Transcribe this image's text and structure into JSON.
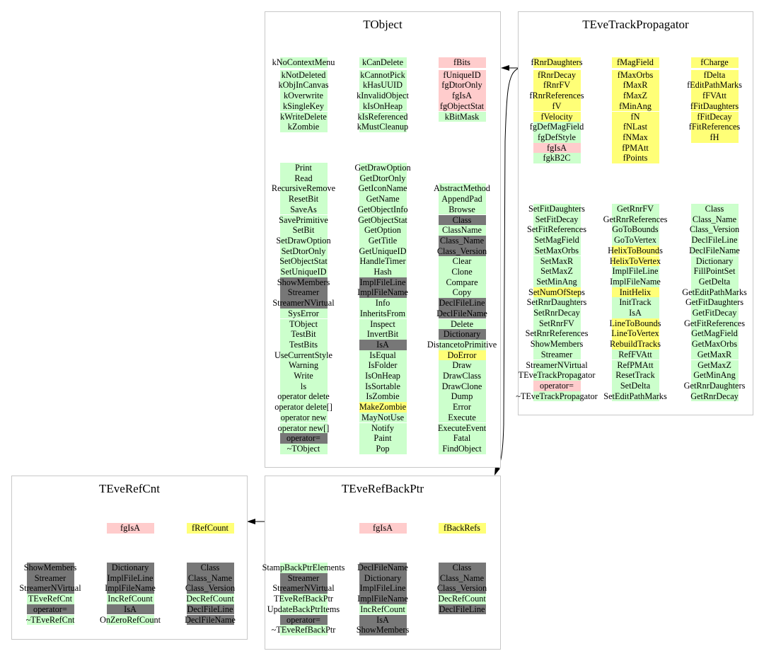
{
  "colors": {
    "g": "#ccffcc",
    "p": "#ffcccc",
    "y": "#ffff77",
    "d": "#777777"
  },
  "classes": [
    {
      "title": "TObject",
      "members": [
        [
          [
            "kNoContextMenu",
            "g"
          ],
          [
            "kNotDeleted",
            "g"
          ],
          [
            "kObjInCanvas",
            "g"
          ],
          [
            "kOverwrite",
            "g"
          ],
          [
            "kSingleKey",
            "g"
          ],
          [
            "kWriteDelete",
            "g"
          ],
          [
            "kZombie",
            "g"
          ]
        ],
        [
          [
            "kCanDelete",
            "g"
          ],
          [
            "kCannotPick",
            "g"
          ],
          [
            "kHasUUID",
            "g"
          ],
          [
            "kInvalidObject",
            "g"
          ],
          [
            "kIsOnHeap",
            "g"
          ],
          [
            "kIsReferenced",
            "g"
          ],
          [
            "kMustCleanup",
            "g"
          ]
        ],
        [
          [
            "fBits",
            "p"
          ],
          [
            "fUniqueID",
            "p"
          ],
          [
            "fgDtorOnly",
            "p"
          ],
          [
            "fgIsA",
            "p"
          ],
          [
            "fgObjectStat",
            "p"
          ],
          [
            "kBitMask",
            "g"
          ]
        ]
      ],
      "methods": [
        [
          [
            "Print",
            "g"
          ],
          [
            "Read",
            "g"
          ],
          [
            "RecursiveRemove",
            "g"
          ],
          [
            "ResetBit",
            "g"
          ],
          [
            "SaveAs",
            "g"
          ],
          [
            "SavePrimitive",
            "g"
          ],
          [
            "SetBit",
            "g"
          ],
          [
            "SetDrawOption",
            "g"
          ],
          [
            "SetDtorOnly",
            "g"
          ],
          [
            "SetObjectStat",
            "g"
          ],
          [
            "SetUniqueID",
            "g"
          ],
          [
            "ShowMembers",
            "d"
          ],
          [
            "Streamer",
            "d"
          ],
          [
            "StreamerNVirtual",
            "d"
          ],
          [
            "SysError",
            "g"
          ],
          [
            "TObject",
            "g"
          ],
          [
            "TestBit",
            "g"
          ],
          [
            "TestBits",
            "g"
          ],
          [
            "UseCurrentStyle",
            "g"
          ],
          [
            "Warning",
            "g"
          ],
          [
            "Write",
            "g"
          ],
          [
            "ls",
            "g"
          ],
          [
            "operator delete",
            "g"
          ],
          [
            "operator delete[]",
            "g"
          ],
          [
            "operator new",
            "g"
          ],
          [
            "operator new[]",
            "g"
          ],
          [
            "operator=",
            "d"
          ],
          [
            "~TObject",
            "g"
          ]
        ],
        [
          [
            "GetDrawOption",
            "g"
          ],
          [
            "GetDtorOnly",
            "g"
          ],
          [
            "GetIconName",
            "g"
          ],
          [
            "GetName",
            "g"
          ],
          [
            "GetObjectInfo",
            "g"
          ],
          [
            "GetObjectStat",
            "g"
          ],
          [
            "GetOption",
            "g"
          ],
          [
            "GetTitle",
            "g"
          ],
          [
            "GetUniqueID",
            "g"
          ],
          [
            "HandleTimer",
            "g"
          ],
          [
            "Hash",
            "g"
          ],
          [
            "ImplFileLine",
            "d"
          ],
          [
            "ImplFileName",
            "d"
          ],
          [
            "Info",
            "g"
          ],
          [
            "InheritsFrom",
            "g"
          ],
          [
            "Inspect",
            "g"
          ],
          [
            "InvertBit",
            "g"
          ],
          [
            "IsA",
            "d"
          ],
          [
            "IsEqual",
            "g"
          ],
          [
            "IsFolder",
            "g"
          ],
          [
            "IsOnHeap",
            "g"
          ],
          [
            "IsSortable",
            "g"
          ],
          [
            "IsZombie",
            "g"
          ],
          [
            "MakeZombie",
            "y"
          ],
          [
            "MayNotUse",
            "g"
          ],
          [
            "Notify",
            "g"
          ],
          [
            "Paint",
            "g"
          ],
          [
            "Pop",
            "g"
          ]
        ],
        [
          [
            "AbstractMethod",
            "g"
          ],
          [
            "AppendPad",
            "g"
          ],
          [
            "Browse",
            "g"
          ],
          [
            "Class",
            "d"
          ],
          [
            "ClassName",
            "g"
          ],
          [
            "Class_Name",
            "d"
          ],
          [
            "Class_Version",
            "d"
          ],
          [
            "Clear",
            "g"
          ],
          [
            "Clone",
            "g"
          ],
          [
            "Compare",
            "g"
          ],
          [
            "Copy",
            "g"
          ],
          [
            "DeclFileLine",
            "d"
          ],
          [
            "DeclFileName",
            "d"
          ],
          [
            "Delete",
            "g"
          ],
          [
            "Dictionary",
            "d"
          ],
          [
            "DistancetoPrimitive",
            "g"
          ],
          [
            "DoError",
            "y"
          ],
          [
            "Draw",
            "g"
          ],
          [
            "DrawClass",
            "g"
          ],
          [
            "DrawClone",
            "g"
          ],
          [
            "Dump",
            "g"
          ],
          [
            "Error",
            "g"
          ],
          [
            "Execute",
            "g"
          ],
          [
            "ExecuteEvent",
            "g"
          ],
          [
            "Fatal",
            "g"
          ],
          [
            "FindObject",
            "g"
          ]
        ]
      ]
    },
    {
      "title": "TEveTrackPropagator",
      "members": [
        [
          [
            "fRnrDaughters",
            "y"
          ],
          [
            "fRnrDecay",
            "y"
          ],
          [
            "fRnrFV",
            "y"
          ],
          [
            "fRnrReferences",
            "y"
          ],
          [
            "fV",
            "y"
          ],
          [
            "fVelocity",
            "y"
          ],
          [
            "fgDefMagField",
            "g"
          ],
          [
            "fgDefStyle",
            "g"
          ],
          [
            "fgIsA",
            "p"
          ],
          [
            "fgkB2C",
            "g"
          ]
        ],
        [
          [
            "fMagField",
            "y"
          ],
          [
            "fMaxOrbs",
            "y"
          ],
          [
            "fMaxR",
            "y"
          ],
          [
            "fMaxZ",
            "y"
          ],
          [
            "fMinAng",
            "y"
          ],
          [
            "fN",
            "y"
          ],
          [
            "fNLast",
            "y"
          ],
          [
            "fNMax",
            "y"
          ],
          [
            "fPMAtt",
            "y"
          ],
          [
            "fPoints",
            "y"
          ]
        ],
        [
          [
            "fCharge",
            "y"
          ],
          [
            "fDelta",
            "y"
          ],
          [
            "fEditPathMarks",
            "y"
          ],
          [
            "fFVAtt",
            "y"
          ],
          [
            "fFitDaughters",
            "y"
          ],
          [
            "fFitDecay",
            "y"
          ],
          [
            "fFitReferences",
            "y"
          ],
          [
            "fH",
            "y"
          ]
        ]
      ],
      "methods": [
        [
          [
            "SetFitDaughters",
            "g"
          ],
          [
            "SetFitDecay",
            "g"
          ],
          [
            "SetFitReferences",
            "g"
          ],
          [
            "SetMagField",
            "g"
          ],
          [
            "SetMaxOrbs",
            "g"
          ],
          [
            "SetMaxR",
            "g"
          ],
          [
            "SetMaxZ",
            "g"
          ],
          [
            "SetMinAng",
            "g"
          ],
          [
            "SetNumOfSteps",
            "y"
          ],
          [
            "SetRnrDaughters",
            "g"
          ],
          [
            "SetRnrDecay",
            "g"
          ],
          [
            "SetRnrFV",
            "g"
          ],
          [
            "SetRnrReferences",
            "g"
          ],
          [
            "ShowMembers",
            "g"
          ],
          [
            "Streamer",
            "g"
          ],
          [
            "StreamerNVirtual",
            "g"
          ],
          [
            "TEveTrackPropagator",
            "g"
          ],
          [
            "operator=",
            "p"
          ],
          [
            "~TEveTrackPropagator",
            "g"
          ]
        ],
        [
          [
            "GetRnrFV",
            "g"
          ],
          [
            "GetRnrReferences",
            "g"
          ],
          [
            "GoToBounds",
            "g"
          ],
          [
            "GoToVertex",
            "g"
          ],
          [
            "HelixToBounds",
            "y"
          ],
          [
            "HelixToVertex",
            "y"
          ],
          [
            "ImplFileLine",
            "g"
          ],
          [
            "ImplFileName",
            "g"
          ],
          [
            "InitHelix",
            "y"
          ],
          [
            "InitTrack",
            "g"
          ],
          [
            "IsA",
            "g"
          ],
          [
            "LineToBounds",
            "y"
          ],
          [
            "LineToVertex",
            "y"
          ],
          [
            "RebuildTracks",
            "y"
          ],
          [
            "RefFVAtt",
            "g"
          ],
          [
            "RefPMAtt",
            "g"
          ],
          [
            "ResetTrack",
            "g"
          ],
          [
            "SetDelta",
            "g"
          ],
          [
            "SetEditPathMarks",
            "g"
          ]
        ],
        [
          [
            "Class",
            "g"
          ],
          [
            "Class_Name",
            "g"
          ],
          [
            "Class_Version",
            "g"
          ],
          [
            "DeclFileLine",
            "g"
          ],
          [
            "DeclFileName",
            "g"
          ],
          [
            "Dictionary",
            "g"
          ],
          [
            "FillPointSet",
            "g"
          ],
          [
            "GetDelta",
            "g"
          ],
          [
            "GetEditPathMarks",
            "g"
          ],
          [
            "GetFitDaughters",
            "g"
          ],
          [
            "GetFitDecay",
            "g"
          ],
          [
            "GetFitReferences",
            "g"
          ],
          [
            "GetMagField",
            "g"
          ],
          [
            "GetMaxOrbs",
            "g"
          ],
          [
            "GetMaxR",
            "g"
          ],
          [
            "GetMaxZ",
            "g"
          ],
          [
            "GetMinAng",
            "g"
          ],
          [
            "GetRnrDaughters",
            "g"
          ],
          [
            "GetRnrDecay",
            "g"
          ]
        ]
      ]
    },
    {
      "title": "TEveRefCnt",
      "members": [
        [],
        [
          [
            "fgIsA",
            "p"
          ]
        ],
        [
          [
            "fRefCount",
            "y"
          ]
        ]
      ],
      "methods": [
        [
          [
            "ShowMembers",
            "d"
          ],
          [
            "Streamer",
            "d"
          ],
          [
            "StreamerNVirtual",
            "d"
          ],
          [
            "TEveRefCnt",
            "g"
          ],
          [
            "operator=",
            "d"
          ],
          [
            "~TEveRefCnt",
            "g"
          ]
        ],
        [
          [
            "Dictionary",
            "d"
          ],
          [
            "ImplFileLine",
            "d"
          ],
          [
            "ImplFileName",
            "d"
          ],
          [
            "IncRefCount",
            "g"
          ],
          [
            "IsA",
            "d"
          ],
          [
            "OnZeroRefCount",
            "g"
          ]
        ],
        [
          [
            "Class",
            "d"
          ],
          [
            "Class_Name",
            "d"
          ],
          [
            "Class_Version",
            "d"
          ],
          [
            "DecRefCount",
            "g"
          ],
          [
            "DeclFileLine",
            "d"
          ],
          [
            "DeclFileName",
            "d"
          ]
        ]
      ]
    },
    {
      "title": "TEveRefBackPtr",
      "members": [
        [],
        [
          [
            "fgIsA",
            "p"
          ]
        ],
        [
          [
            "fBackRefs",
            "y"
          ]
        ]
      ],
      "methods": [
        [
          [
            "StampBackPtrElements",
            "g"
          ],
          [
            "Streamer",
            "d"
          ],
          [
            "StreamerNVirtual",
            "d"
          ],
          [
            "TEveRefBackPtr",
            "g"
          ],
          [
            "UpdateBackPtrItems",
            "g"
          ],
          [
            "operator=",
            "d"
          ],
          [
            "~TEveRefBackPtr",
            "g"
          ]
        ],
        [
          [
            "DeclFileName",
            "d"
          ],
          [
            "Dictionary",
            "d"
          ],
          [
            "ImplFileLine",
            "d"
          ],
          [
            "ImplFileName",
            "d"
          ],
          [
            "IncRefCount",
            "g"
          ],
          [
            "IsA",
            "d"
          ],
          [
            "ShowMembers",
            "d"
          ]
        ],
        [
          [
            "Class",
            "d"
          ],
          [
            "Class_Name",
            "d"
          ],
          [
            "Class_Version",
            "d"
          ],
          [
            "DecRefCount",
            "g"
          ],
          [
            "DeclFileLine",
            "d"
          ]
        ]
      ]
    }
  ]
}
